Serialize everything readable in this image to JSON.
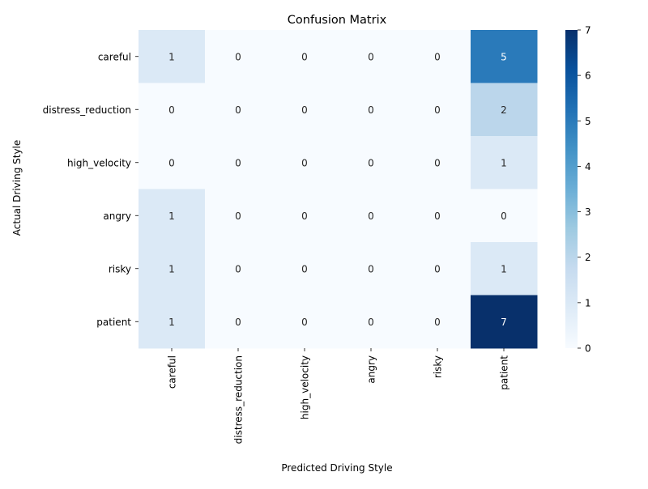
{
  "chart_data": {
    "type": "heatmap",
    "title": "Confusion Matrix",
    "xlabel": "Predicted Driving Style",
    "ylabel": "Actual Driving Style",
    "x_categories": [
      "careful",
      "distress_reduction",
      "high_velocity",
      "angry",
      "risky",
      "patient"
    ],
    "y_categories": [
      "careful",
      "distress_reduction",
      "high_velocity",
      "angry",
      "risky",
      "patient"
    ],
    "values": [
      [
        1,
        0,
        0,
        0,
        0,
        5
      ],
      [
        0,
        0,
        0,
        0,
        0,
        2
      ],
      [
        0,
        0,
        0,
        0,
        0,
        1
      ],
      [
        1,
        0,
        0,
        0,
        0,
        0
      ],
      [
        1,
        0,
        0,
        0,
        0,
        1
      ],
      [
        1,
        0,
        0,
        0,
        0,
        7
      ]
    ],
    "colorbar": {
      "min": 0,
      "max": 7,
      "ticks": [
        0,
        1,
        2,
        3,
        4,
        5,
        6,
        7
      ],
      "colormap": "Blues"
    },
    "annotate_cells": true
  }
}
